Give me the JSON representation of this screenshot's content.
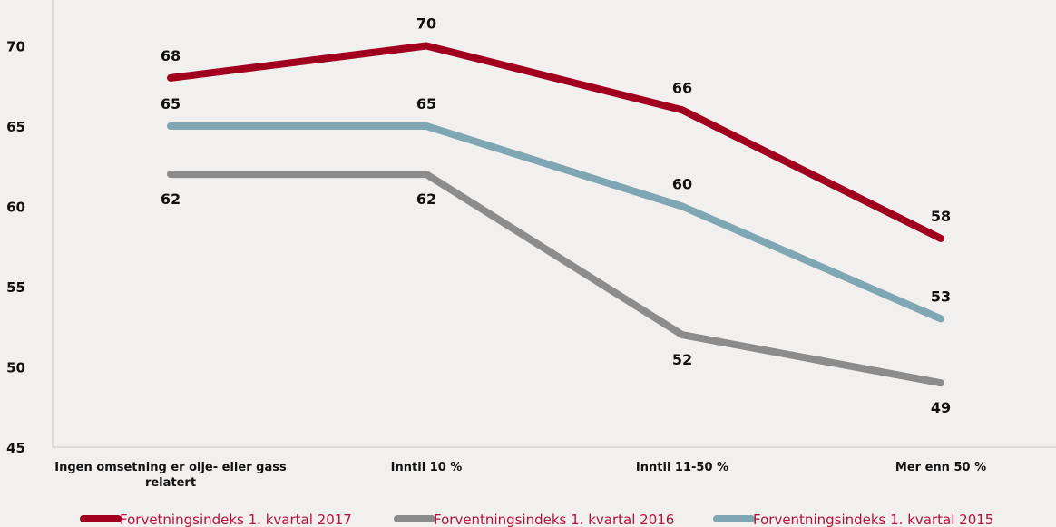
{
  "chart_data": {
    "type": "line",
    "categories": [
      [
        "Ingen omsetning er olje- eller gass",
        "relatert"
      ],
      [
        "Inntil 10 %"
      ],
      [
        "Inntil 11-50 %"
      ],
      [
        "Mer enn 50 %"
      ]
    ],
    "y_ticks": [
      "45",
      "50",
      "55",
      "60",
      "65",
      "70"
    ],
    "ylim": [
      45,
      72
    ],
    "grid": false,
    "legend_position": "bottom",
    "series": [
      {
        "name": "Forvetningsindeks 1. kvartal 2017",
        "values": [
          68,
          70,
          66,
          58
        ],
        "labels": [
          "68",
          "70",
          "66",
          "58"
        ],
        "label_pos": [
          "above",
          "above",
          "above",
          "above"
        ],
        "color": "#a0001e"
      },
      {
        "name": "Forventningsindeks 1. kvartal 2016",
        "values": [
          62,
          62,
          52,
          49
        ],
        "labels": [
          "62",
          "62",
          "52",
          "49"
        ],
        "label_pos": [
          "below",
          "below",
          "below",
          "below"
        ],
        "color": "#8c8c8c"
      },
      {
        "name": "Forventningsindeks 1. kvartal 2015",
        "values": [
          65,
          65,
          60,
          53
        ],
        "labels": [
          "65",
          "65",
          "60",
          "53"
        ],
        "label_pos": [
          "above",
          "above",
          "above",
          "above"
        ],
        "color": "#7fa6b3"
      }
    ],
    "legend_text_color": "#b2123a"
  }
}
